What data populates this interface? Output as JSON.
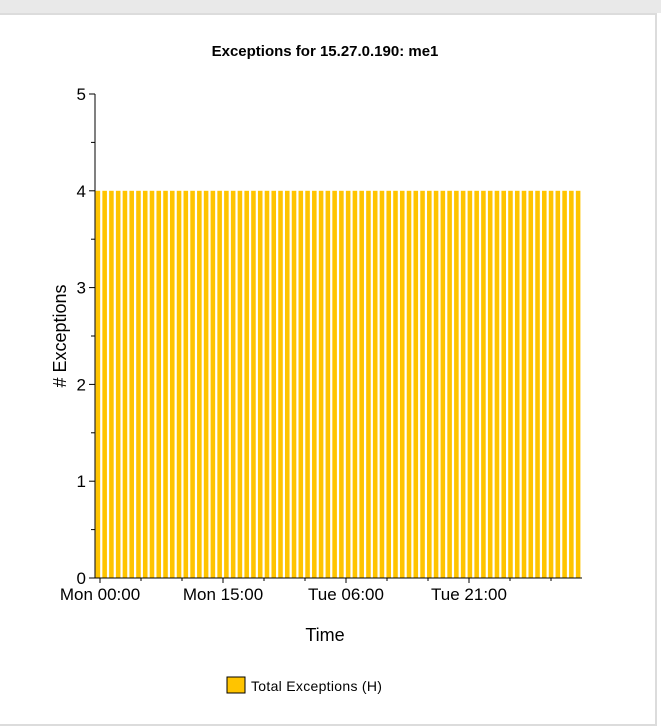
{
  "chart_data": {
    "type": "bar",
    "title": "Exceptions for 15.27.0.190: me1",
    "xlabel": "Time",
    "ylabel": "# Exceptions",
    "ylim": [
      0,
      5
    ],
    "yticks": [
      "0",
      "1",
      "2",
      "3",
      "4",
      "5"
    ],
    "xticks": [
      "Mon 00:00",
      "Mon 15:00",
      "Tue 06:00",
      "Tue 21:00"
    ],
    "bar_count": 72,
    "values": [
      4,
      4,
      4,
      4,
      4,
      4,
      4,
      4,
      4,
      4,
      4,
      4,
      4,
      4,
      4,
      4,
      4,
      4,
      4,
      4,
      4,
      4,
      4,
      4,
      4,
      4,
      4,
      4,
      4,
      4,
      4,
      4,
      4,
      4,
      4,
      4,
      4,
      4,
      4,
      4,
      4,
      4,
      4,
      4,
      4,
      4,
      4,
      4,
      4,
      4,
      4,
      4,
      4,
      4,
      4,
      4,
      4,
      4,
      4,
      4,
      4,
      4,
      4,
      4,
      4,
      4,
      4,
      4,
      4,
      4,
      4,
      4
    ],
    "series": [
      {
        "name": "Total Exceptions (H)",
        "color": "#ffc400"
      }
    ],
    "legend_position": "bottom",
    "grid": false
  }
}
